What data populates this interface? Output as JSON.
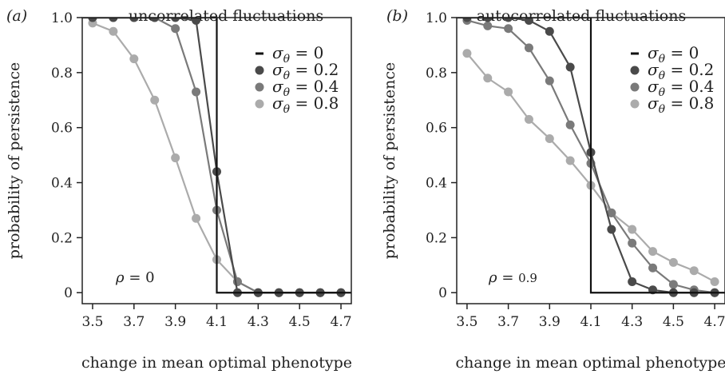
{
  "chart_data": [
    {
      "type": "line",
      "panel_label": "(a)",
      "title": "uncorrelated fluctuations",
      "xlabel": "change in mean optimal phenotype",
      "ylabel": "probability of persistence",
      "xlim": [
        3.45,
        4.75
      ],
      "ylim": [
        -0.04,
        1.0
      ],
      "xticks": [
        "3.5",
        "3.7",
        "3.9",
        "4.1",
        "4.3",
        "4.5",
        "4.7"
      ],
      "yticks": [
        "0",
        "0.2",
        "0.4",
        "0.6",
        "0.8",
        "1.0"
      ],
      "annotation": "ρ = 0",
      "legend_position": "top-right",
      "x": [
        3.5,
        3.6,
        3.7,
        3.8,
        3.9,
        4.0,
        4.1,
        4.2,
        4.3,
        4.4,
        4.5,
        4.6,
        4.7
      ],
      "series": [
        {
          "name": "σθ = 0",
          "color": "#111111",
          "step_at": 4.1,
          "high": 1.0,
          "low": 0.0
        },
        {
          "name": "σθ = 0.2",
          "color": "#4a4a4a",
          "values": [
            1.0,
            1.0,
            1.0,
            1.0,
            1.0,
            0.99,
            0.44,
            0.0,
            0.0,
            0.0,
            0.0,
            0.0,
            0.0
          ]
        },
        {
          "name": "σθ = 0.4",
          "color": "#7a7a7a",
          "values": [
            1.0,
            1.0,
            1.0,
            1.0,
            0.96,
            0.73,
            0.3,
            0.04,
            0.0,
            0.0,
            0.0,
            0.0,
            0.0
          ]
        },
        {
          "name": "σθ = 0.8",
          "color": "#ababab",
          "values": [
            0.98,
            0.95,
            0.85,
            0.7,
            0.49,
            0.27,
            0.12,
            0.04,
            0.0,
            0.0,
            0.0,
            0.0,
            0.0
          ]
        }
      ]
    },
    {
      "type": "line",
      "panel_label": "(b)",
      "title": "autocorrelated fluctuations",
      "xlabel": "change in mean optimal phenotype",
      "ylabel": "probability of persistence",
      "xlim": [
        3.45,
        4.75
      ],
      "ylim": [
        -0.04,
        1.0
      ],
      "xticks": [
        "3.5",
        "3.7",
        "3.9",
        "4.1",
        "4.3",
        "4.5",
        "4.7"
      ],
      "yticks": [
        "0",
        "0.2",
        "0.4",
        "0.6",
        "0.8",
        "1.0"
      ],
      "annotation": "ρ = 0.9",
      "legend_position": "top-right",
      "x": [
        3.5,
        3.6,
        3.7,
        3.8,
        3.9,
        4.0,
        4.1,
        4.2,
        4.3,
        4.4,
        4.5,
        4.6,
        4.7
      ],
      "series": [
        {
          "name": "σθ = 0",
          "color": "#111111",
          "step_at": 4.1,
          "high": 1.0,
          "low": 0.0
        },
        {
          "name": "σθ = 0.2",
          "color": "#4a4a4a",
          "values": [
            1.0,
            1.0,
            1.0,
            0.99,
            0.95,
            0.82,
            0.51,
            0.23,
            0.04,
            0.01,
            0.0,
            0.0,
            0.0
          ]
        },
        {
          "name": "σθ = 0.4",
          "color": "#7a7a7a",
          "values": [
            0.99,
            0.97,
            0.96,
            0.89,
            0.77,
            0.61,
            0.47,
            0.29,
            0.18,
            0.09,
            0.03,
            0.01,
            0.0
          ]
        },
        {
          "name": "σθ = 0.8",
          "color": "#ababab",
          "values": [
            0.87,
            0.78,
            0.73,
            0.63,
            0.56,
            0.48,
            0.39,
            0.29,
            0.23,
            0.15,
            0.11,
            0.08,
            0.04
          ]
        }
      ]
    }
  ]
}
